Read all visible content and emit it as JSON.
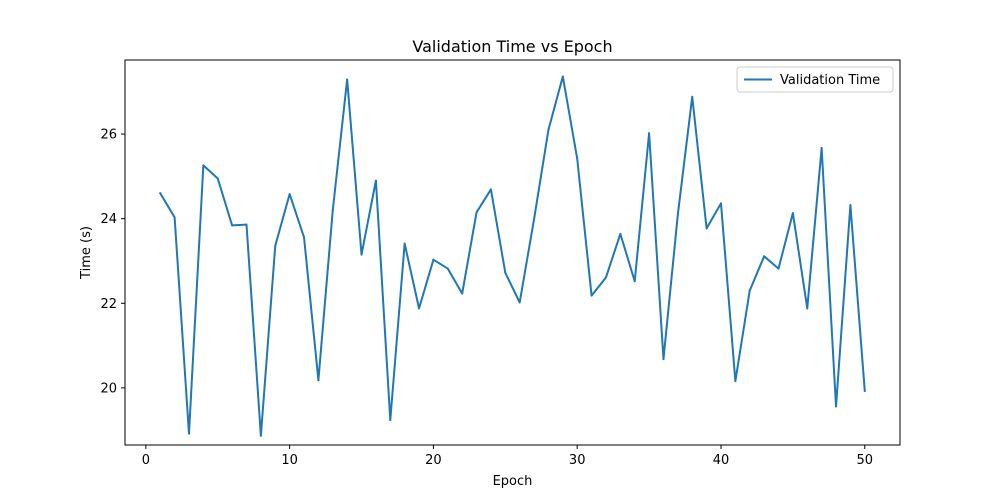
{
  "chart_data": {
    "type": "line",
    "title": "Validation Time vs Epoch",
    "xlabel": "Epoch",
    "ylabel": "Time (s)",
    "xlim": [
      -1.45,
      52.45
    ],
    "ylim": [
      18.65,
      27.75
    ],
    "xticks": [
      0,
      10,
      20,
      30,
      40,
      50
    ],
    "yticks": [
      20,
      22,
      24,
      26
    ],
    "grid": false,
    "legend_position": "top-right",
    "series": [
      {
        "name": "Validation Time",
        "color": "#1f77b4",
        "x": [
          1,
          2,
          3,
          4,
          5,
          6,
          7,
          8,
          9,
          10,
          11,
          12,
          13,
          14,
          15,
          16,
          17,
          18,
          19,
          20,
          21,
          22,
          23,
          24,
          25,
          26,
          27,
          28,
          29,
          30,
          31,
          32,
          33,
          34,
          35,
          36,
          37,
          38,
          39,
          40,
          41,
          42,
          43,
          44,
          45,
          46,
          47,
          48,
          49,
          50
        ],
        "y": [
          24.6,
          24.03,
          18.92,
          25.26,
          24.95,
          23.84,
          23.86,
          18.87,
          23.36,
          24.58,
          23.56,
          20.18,
          24.2,
          27.29,
          23.15,
          24.9,
          19.24,
          23.41,
          21.88,
          23.03,
          22.82,
          22.23,
          24.15,
          24.69,
          22.72,
          22.02,
          23.99,
          26.1,
          27.36,
          25.42,
          22.18,
          22.61,
          23.64,
          22.52,
          26.02,
          20.68,
          24.1,
          26.88,
          23.77,
          24.36,
          20.16,
          22.3,
          23.11,
          22.82,
          24.13,
          21.88,
          25.67,
          19.56,
          24.32,
          19.93
        ]
      }
    ]
  }
}
